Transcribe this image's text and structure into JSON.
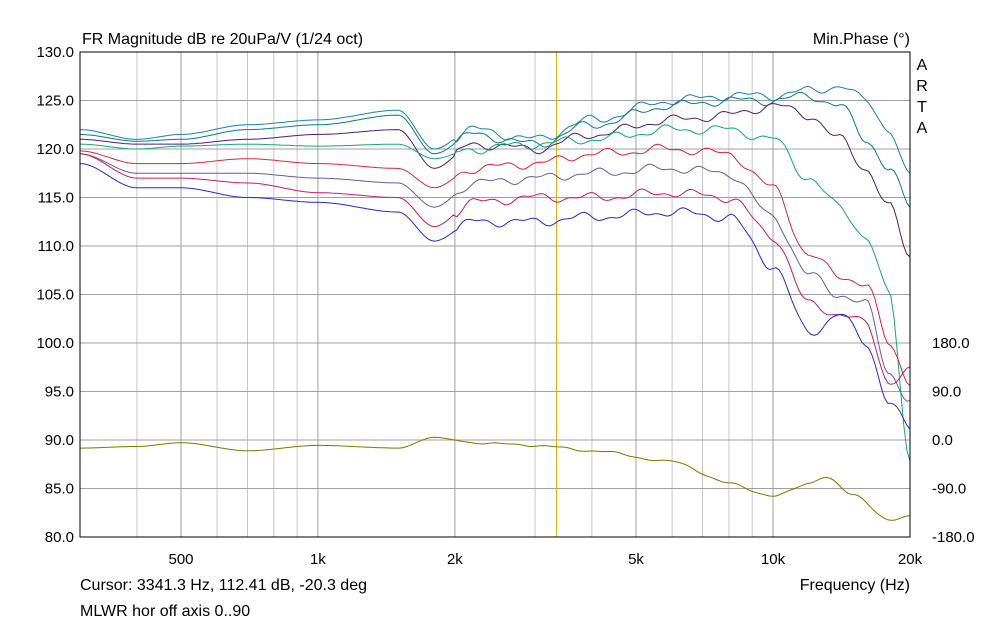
{
  "title": "FR Magnitude dB re 20uPa/V (1/24 oct)",
  "right_title": "Min.Phase (°)",
  "watermark": "ARTA",
  "cursor_readout": "Cursor: 3341.3 Hz, 112.41 dB, -20.3 deg",
  "measurement_name": "MLWR hor off axis 0..90",
  "colors": {
    "grid": "#a0a0a0",
    "cursor": "#d4b000",
    "phase": "#7a7a00",
    "series": [
      "#1c7fb4",
      "#0a7a8a",
      "#4a1f7a",
      "#15a878",
      "#d12a3a",
      "#6a5aa0",
      "#c81e62",
      "#2a2ac8",
      "#6a6a6a"
    ]
  },
  "chart_data": {
    "type": "line",
    "x_scale": "log",
    "xlabel": "Frequency (Hz)",
    "xlim": [
      300,
      20000
    ],
    "x_ticks": [
      500,
      1000,
      2000,
      5000,
      10000,
      20000
    ],
    "x_tick_labels": [
      "500",
      "1k",
      "2k",
      "5k",
      "10k",
      "20k"
    ],
    "ylim": [
      80,
      130
    ],
    "y_ticks": [
      80,
      85,
      90,
      95,
      100,
      105,
      110,
      115,
      120,
      125,
      130
    ],
    "y_tick_labels": [
      "80.0",
      "85.0",
      "90.0",
      "95.0",
      "100.0",
      "105.0",
      "110.0",
      "115.0",
      "120.0",
      "125.0",
      "130.0"
    ],
    "y2_ticks": [
      -180,
      -90,
      0,
      90,
      180
    ],
    "y2_tick_labels": [
      "-180.0",
      "-90.0",
      "0.0",
      "90.0",
      "180.0"
    ],
    "cursor_x": 3341.3,
    "grid": true,
    "series": [
      {
        "x": [
          300,
          400,
          500,
          700,
          1000,
          1500,
          1800,
          2200,
          3000,
          4000,
          6000,
          8000,
          10000,
          12000,
          14000,
          16000,
          18000,
          20000
        ],
        "values": [
          122,
          121,
          121.5,
          122.5,
          123,
          124,
          120,
          122,
          121,
          123,
          125,
          125.5,
          125.5,
          126,
          126.5,
          125,
          122,
          117
        ]
      },
      {
        "x": [
          300,
          400,
          500,
          700,
          1000,
          1500,
          1800,
          2200,
          3000,
          4000,
          6000,
          8000,
          10000,
          12000,
          14000,
          16000,
          18000,
          20000
        ],
        "values": [
          121.5,
          120.8,
          121,
          122,
          122.5,
          123.5,
          119.5,
          121.5,
          120.5,
          122.5,
          124.5,
          125,
          125,
          125.5,
          124.5,
          121,
          118,
          114
        ]
      },
      {
        "x": [
          300,
          400,
          500,
          700,
          1000,
          1500,
          1800,
          2200,
          3000,
          4000,
          6000,
          8000,
          10000,
          12000,
          14000,
          16000,
          18000,
          20000
        ],
        "values": [
          121,
          120.5,
          120.5,
          121,
          121.5,
          122,
          118,
          120.5,
          120,
          121.5,
          123,
          123.5,
          124.5,
          123.5,
          121,
          118,
          114,
          109
        ]
      },
      {
        "x": [
          300,
          400,
          500,
          700,
          1000,
          1500,
          1800,
          2200,
          3000,
          4000,
          6000,
          8000,
          10000,
          12000,
          14000,
          16000,
          18000,
          20000
        ],
        "values": [
          120.5,
          120,
          120.3,
          120.5,
          120.3,
          120.5,
          119,
          120,
          120.5,
          121,
          122,
          122,
          121,
          117,
          114,
          111,
          105,
          88
        ]
      },
      {
        "x": [
          300,
          400,
          500,
          700,
          1000,
          1500,
          1800,
          2200,
          3000,
          4000,
          6000,
          8000,
          10000,
          12000,
          14000,
          16000,
          18000,
          20000
        ],
        "values": [
          119.8,
          118.5,
          118.5,
          119,
          118.5,
          118,
          116,
          118,
          118.5,
          119.5,
          120,
          119.5,
          116,
          109,
          107,
          106,
          100,
          96
        ]
      },
      {
        "x": [
          300,
          400,
          500,
          700,
          1000,
          1500,
          1800,
          2200,
          3000,
          4000,
          6000,
          8000,
          10000,
          12000,
          14000,
          16000,
          18000,
          20000
        ],
        "values": [
          119.5,
          117.5,
          117.5,
          117.5,
          117,
          116.5,
          114,
          116.5,
          117,
          117.5,
          118,
          117.5,
          113,
          107,
          105,
          104,
          97,
          94
        ]
      },
      {
        "x": [
          300,
          400,
          500,
          700,
          1000,
          1500,
          1800,
          2200,
          3000,
          4000,
          6000,
          8000,
          10000,
          12000,
          14000,
          16000,
          18000,
          20000
        ],
        "values": [
          119.5,
          117,
          117,
          116.5,
          115.5,
          115,
          112,
          114.5,
          115,
          115,
          115.5,
          115,
          111,
          104,
          103,
          102,
          96,
          97
        ]
      },
      {
        "x": [
          300,
          400,
          500,
          700,
          1000,
          1500,
          1800,
          2200,
          3000,
          4000,
          6000,
          8000,
          10000,
          12000,
          14000,
          16000,
          18000,
          20000
        ],
        "values": [
          118.5,
          116,
          116,
          115,
          114.5,
          113.5,
          110.5,
          112.5,
          112.5,
          113,
          113.5,
          113,
          108,
          101,
          103,
          100,
          94,
          91
        ]
      }
    ],
    "phase_series": {
      "x": [
        300,
        400,
        500,
        700,
        1000,
        1500,
        1800,
        2200,
        3000,
        4000,
        6000,
        8000,
        10000,
        12000,
        13000,
        15000,
        18000,
        20000
      ],
      "values": [
        -15,
        -12,
        -5,
        -20,
        -10,
        -15,
        5,
        -5,
        -10,
        -20,
        -40,
        -80,
        -105,
        -80,
        -70,
        -100,
        -150,
        -140
      ]
    }
  }
}
